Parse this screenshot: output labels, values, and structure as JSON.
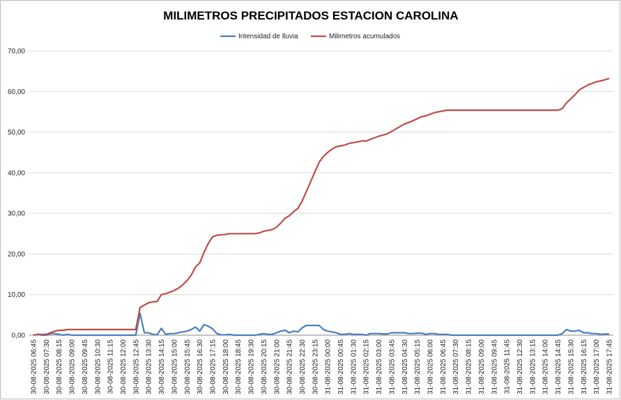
{
  "chart_data": {
    "type": "line",
    "title": "MILIMETROS PRECIPITADOS ESTACION CAROLINA",
    "categories": [
      "30-08-2025 06:45",
      null,
      null,
      "30-08-2025 07:30",
      null,
      null,
      "30-08-2025 08:15",
      null,
      null,
      "30-08-2025 09:00",
      null,
      null,
      "30-08-2025 09:45",
      null,
      null,
      "30-08-2025 10:30",
      null,
      null,
      "30-08-2025 11:15",
      null,
      null,
      "30-08-2025 12:00",
      null,
      null,
      "30-08-2025 12:45",
      null,
      null,
      "30-08-2025 13:30",
      null,
      null,
      "30-08-2025 14:15",
      null,
      null,
      "30-08-2025 15:00",
      null,
      null,
      "30-08-2025 15:45",
      null,
      null,
      "30-08-2025 16:30",
      null,
      null,
      "30-08-2025 17:15",
      null,
      null,
      "30-08-2025 18:00",
      null,
      null,
      "30-08-2025 18:45",
      null,
      null,
      "30-08-2025 19:30",
      null,
      null,
      "30-08-2025 20:15",
      null,
      null,
      "30-08-2025 21:00",
      null,
      null,
      "30-08-2025 21:45",
      null,
      null,
      "30-08-2025 22:30",
      null,
      null,
      "30-08-2025 23:15",
      null,
      null,
      "31-08-2025 00:00",
      null,
      null,
      "31-08-2025 00:45",
      null,
      null,
      "31-08-2025 01:30",
      null,
      null,
      "31-08-2025 02:15",
      null,
      null,
      "31-08-2025 03:00",
      null,
      null,
      "31-08-2025 03:45",
      null,
      null,
      "31-08-2025 04:30",
      null,
      null,
      "31-08-2025 05:15",
      null,
      null,
      "31-08-2025 06:00",
      null,
      null,
      "31-08-2025 06:45",
      null,
      null,
      "31-08-2025 07:30",
      null,
      null,
      "31-08-2025 08:15",
      null,
      null,
      "31-08-2025 09:00",
      null,
      null,
      "31-08-2025 09:45",
      null,
      null,
      "31-08-2025 11:45",
      null,
      null,
      "31-08-2025 12:30",
      null,
      null,
      "31-08-2025 13:15",
      null,
      null,
      "31-08-2025 14:00",
      null,
      null,
      "31-08-2025 14:45",
      null,
      null,
      "31-08-2025 15:30",
      null,
      null,
      "31-08-2025 16:15",
      null,
      null,
      "31-08-2025 17:00",
      null,
      null,
      "31-08-2025 17:45"
    ],
    "series": [
      {
        "name": "Intensidad de lluvia",
        "color": "#4a7ebb",
        "values": [
          0,
          0.2,
          0,
          0,
          0.4,
          0.4,
          0.2,
          0,
          0.2,
          0,
          0,
          0,
          0,
          0,
          0,
          0,
          0,
          0,
          0,
          0,
          0,
          0,
          0,
          0,
          0,
          5.4,
          0.6,
          0.6,
          0.2,
          0.1,
          1.7,
          0.2,
          0.4,
          0.4,
          0.6,
          0.8,
          1.0,
          1.4,
          2.0,
          1.0,
          2.6,
          2.2,
          1.6,
          0.4,
          0.1,
          0.1,
          0.2,
          0,
          0,
          0,
          0,
          0,
          0,
          0.2,
          0.4,
          0.2,
          0.2,
          0.6,
          1.0,
          1.2,
          0.6,
          1.0,
          0.8,
          1.8,
          2.4,
          2.4,
          2.4,
          2.4,
          1.4,
          1.0,
          0.8,
          0.6,
          0.2,
          0.2,
          0.4,
          0.2,
          0.2,
          0.2,
          0,
          0.4,
          0.4,
          0.4,
          0.3,
          0.3,
          0.6,
          0.6,
          0.6,
          0.6,
          0.4,
          0.4,
          0.5,
          0.5,
          0.2,
          0.4,
          0.4,
          0.2,
          0.2,
          0.2,
          0,
          0,
          0,
          0,
          0,
          0,
          0,
          0,
          0,
          0,
          0,
          0,
          0,
          0,
          0,
          0,
          0,
          0,
          0,
          0,
          0,
          0,
          0,
          0,
          0,
          0,
          0.4,
          1.4,
          1.0,
          1.0,
          1.2,
          0.6,
          0.6,
          0.4,
          0.4,
          0.2,
          0.3,
          0.3
        ]
      },
      {
        "name": "Milimetros acumulados",
        "color": "#be4b48",
        "values": [
          0,
          0.2,
          0.2,
          0.2,
          0.6,
          1.0,
          1.2,
          1.2,
          1.4,
          1.4,
          1.4,
          1.4,
          1.4,
          1.4,
          1.4,
          1.4,
          1.4,
          1.4,
          1.4,
          1.4,
          1.4,
          1.4,
          1.4,
          1.4,
          1.4,
          6.8,
          7.4,
          8.0,
          8.2,
          8.3,
          10.0,
          10.2,
          10.6,
          11.0,
          11.6,
          12.4,
          13.4,
          14.8,
          16.8,
          17.8,
          20.4,
          22.6,
          24.2,
          24.6,
          24.7,
          24.8,
          25.0,
          25.0,
          25.0,
          25.0,
          25.0,
          25.0,
          25.0,
          25.2,
          25.6,
          25.8,
          26.0,
          26.6,
          27.6,
          28.8,
          29.4,
          30.4,
          31.2,
          33.0,
          35.4,
          37.8,
          40.2,
          42.6,
          44.0,
          45.0,
          45.8,
          46.4,
          46.6,
          46.8,
          47.2,
          47.4,
          47.6,
          47.8,
          47.8,
          48.2,
          48.6,
          49.0,
          49.3,
          49.6,
          50.2,
          50.8,
          51.4,
          52.0,
          52.4,
          52.8,
          53.3,
          53.8,
          54.0,
          54.4,
          54.8,
          55.0,
          55.2,
          55.4,
          55.4,
          55.4,
          55.4,
          55.4,
          55.4,
          55.4,
          55.4,
          55.4,
          55.4,
          55.4,
          55.4,
          55.4,
          55.4,
          55.4,
          55.4,
          55.4,
          55.4,
          55.4,
          55.4,
          55.4,
          55.4,
          55.4,
          55.4,
          55.4,
          55.4,
          55.4,
          55.8,
          57.2,
          58.2,
          59.2,
          60.4,
          61.0,
          61.6,
          62.0,
          62.4,
          62.6,
          62.9,
          63.2
        ]
      }
    ],
    "ylim": [
      0,
      70
    ],
    "yticks": [
      {
        "value": 0,
        "label": "0,00"
      },
      {
        "value": 10,
        "label": "10,00"
      },
      {
        "value": 20,
        "label": "20,00"
      },
      {
        "value": 30,
        "label": "30,00"
      },
      {
        "value": 40,
        "label": "40,00"
      },
      {
        "value": 50,
        "label": "50,00"
      },
      {
        "value": 60,
        "label": "60,00"
      },
      {
        "value": 70,
        "label": "70,00"
      }
    ],
    "grid": true,
    "legend": "top"
  }
}
